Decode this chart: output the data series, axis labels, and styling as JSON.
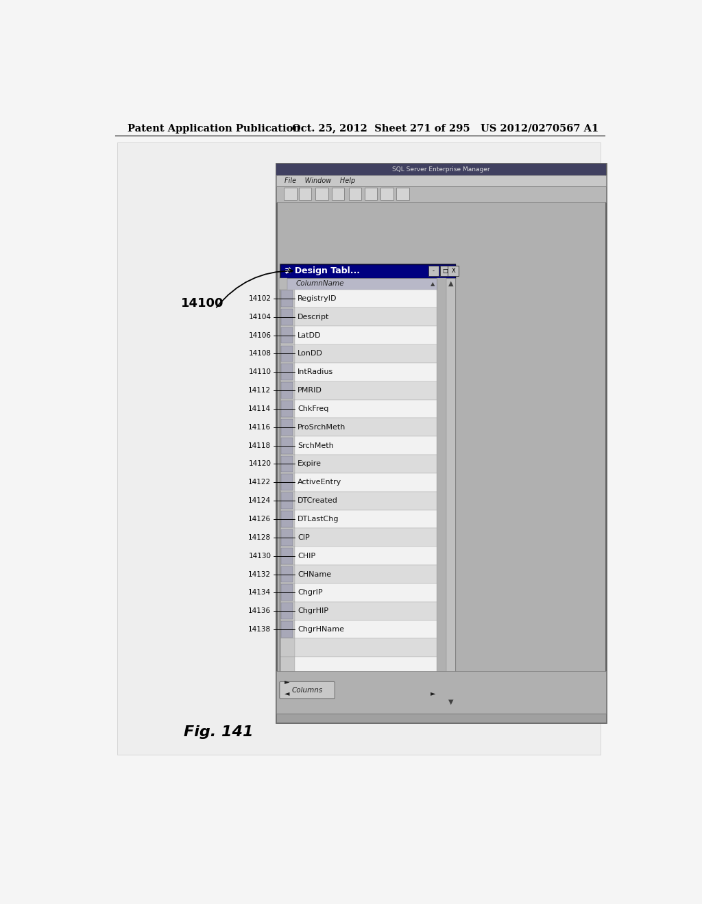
{
  "header_text": "Patent Application Publication",
  "header_date": "Oct. 25, 2012  Sheet 271 of 295   US 2012/0270567 A1",
  "fig_label": "Fig. 141",
  "window_title": "≢ Design Tabl...",
  "column_header": "ColumnName",
  "all_names": [
    "RegistryID",
    "Descript",
    "LatDD",
    "LonDD",
    "IntRadius",
    "PMRID",
    "ChkFreq",
    "ProSrchMeth",
    "SrchMeth",
    "Expire",
    "ActiveEntry",
    "DTCreated",
    "DTLastChg",
    "CIP",
    "CHIP",
    "CHName",
    "ChgrIP",
    "ChgrHIP",
    "ChgrHName",
    "",
    ""
  ],
  "left_refs": [
    [
      0,
      "14102"
    ],
    [
      1,
      "14104"
    ],
    [
      2,
      "14106"
    ],
    [
      3,
      "14108"
    ],
    [
      4,
      "14110"
    ],
    [
      5,
      "14112"
    ],
    [
      6,
      "14114"
    ],
    [
      7,
      "14116"
    ],
    [
      8,
      "14118"
    ],
    [
      9,
      "14120"
    ],
    [
      10,
      "14122"
    ],
    [
      11,
      "14124"
    ],
    [
      12,
      "14126"
    ],
    [
      13,
      "14128"
    ],
    [
      14,
      "14130"
    ],
    [
      15,
      "14132"
    ],
    [
      16,
      "14134"
    ],
    [
      17,
      "14136"
    ],
    [
      18,
      "14138"
    ]
  ],
  "page_bg": "#f5f5f5",
  "inner_bg": "#e8e8e8",
  "app_title_color": "#5a5a5a",
  "dlg_title_color": "#000090",
  "col_hdr_color": "#b8b8c8",
  "row_light": "#f2f2f2",
  "row_dark": "#dcdcdc",
  "icon_cell_color": "#c8c8c8",
  "scrollbar_color": "#c0c0c0"
}
